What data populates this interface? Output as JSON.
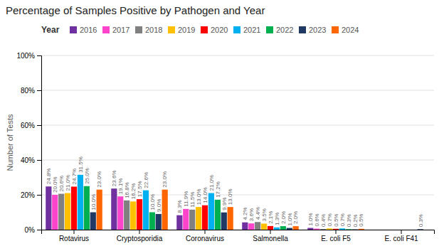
{
  "chart_data": {
    "type": "bar",
    "title": "Percentage of Samples Positive by Pathogen and Year",
    "y_label": "Number of Tests",
    "legend_title": "Year",
    "legend": "top",
    "grid": true,
    "data_labels": true,
    "categories": [
      "Rotavirus",
      "Cryptosporidia",
      "Coronavirus",
      "Salmonella",
      "E. coli F5",
      "E. coli F41"
    ],
    "series": [
      {
        "name": "2016",
        "color": "#7030a0",
        "values": [
          24.8,
          23.6,
          8.3,
          4.2,
          1.0,
          0.0
        ],
        "value_labels": [
          "24.8%",
          "23.6%",
          "8.3%",
          "4.2%",
          "1.0%",
          null
        ]
      },
      {
        "name": "2017",
        "color": "#ff44cc",
        "values": [
          20.0,
          19.1,
          11.9,
          3.6,
          0.6,
          0.0
        ],
        "value_labels": [
          "20.0%",
          "19.1%",
          "11.9%",
          "3.6%",
          "0.6%",
          null
        ]
      },
      {
        "name": "2018",
        "color": "#808080",
        "values": [
          20.6,
          16.8,
          11.5,
          4.4,
          0.4,
          0.0
        ],
        "value_labels": [
          "20.6%",
          "16.8%",
          "11.5%",
          "4.4%",
          "0.4%",
          null
        ]
      },
      {
        "name": "2019",
        "color": "#ffc000",
        "values": [
          21.0,
          16.2,
          13.0,
          3.5,
          0.7,
          0.0
        ],
        "value_labels": [
          "21.0%",
          "16.2%",
          "13.0%",
          "3.5%",
          "0.7%",
          null
        ]
      },
      {
        "name": "2020",
        "color": "#ff0000",
        "values": [
          24.7,
          17.5,
          14.0,
          2.1,
          0.5,
          0.0
        ],
        "value_labels": [
          "24.7%",
          "17.5%",
          "14.0%",
          "2.1%",
          "0.5%",
          null
        ]
      },
      {
        "name": "2021",
        "color": "#00b0f0",
        "values": [
          31.5,
          22.6,
          21.0,
          1.3,
          0.7,
          0.0
        ],
        "value_labels": [
          "31.5%",
          "22.6%",
          "21.0%",
          "1.3%",
          "0.7%",
          null
        ]
      },
      {
        "name": "2022",
        "color": "#00b050",
        "values": [
          25.0,
          10.0,
          17.2,
          2.0,
          0.3,
          0.0
        ],
        "value_labels": [
          "25.0%",
          "10.0%",
          "17.2%",
          "2.0%",
          "0.3%",
          null
        ]
      },
      {
        "name": "2023",
        "color": "#1f3864",
        "values": [
          10.0,
          9.0,
          9.9,
          1.0,
          0.2,
          0.3
        ],
        "value_labels": [
          "10.0%",
          "9.0%",
          "9.9%",
          "1.0%",
          "0.2%",
          "0.3%"
        ]
      },
      {
        "name": "2024",
        "color": "#ff6600",
        "values": [
          23.0,
          23.0,
          13.0,
          2.0,
          0.5,
          0.0
        ],
        "value_labels": [
          "23.0%",
          "23.0%",
          "13.0%",
          "2.0%",
          "0.5%",
          null
        ]
      }
    ],
    "ylim": [
      0,
      100
    ],
    "yticks": [
      {
        "value": 0,
        "label": "0%"
      },
      {
        "value": 20,
        "label": "20%"
      },
      {
        "value": 40,
        "label": "40%"
      },
      {
        "value": 60,
        "label": "60%"
      },
      {
        "value": 80,
        "label": "80%"
      },
      {
        "value": 100,
        "label": "100%"
      }
    ]
  }
}
